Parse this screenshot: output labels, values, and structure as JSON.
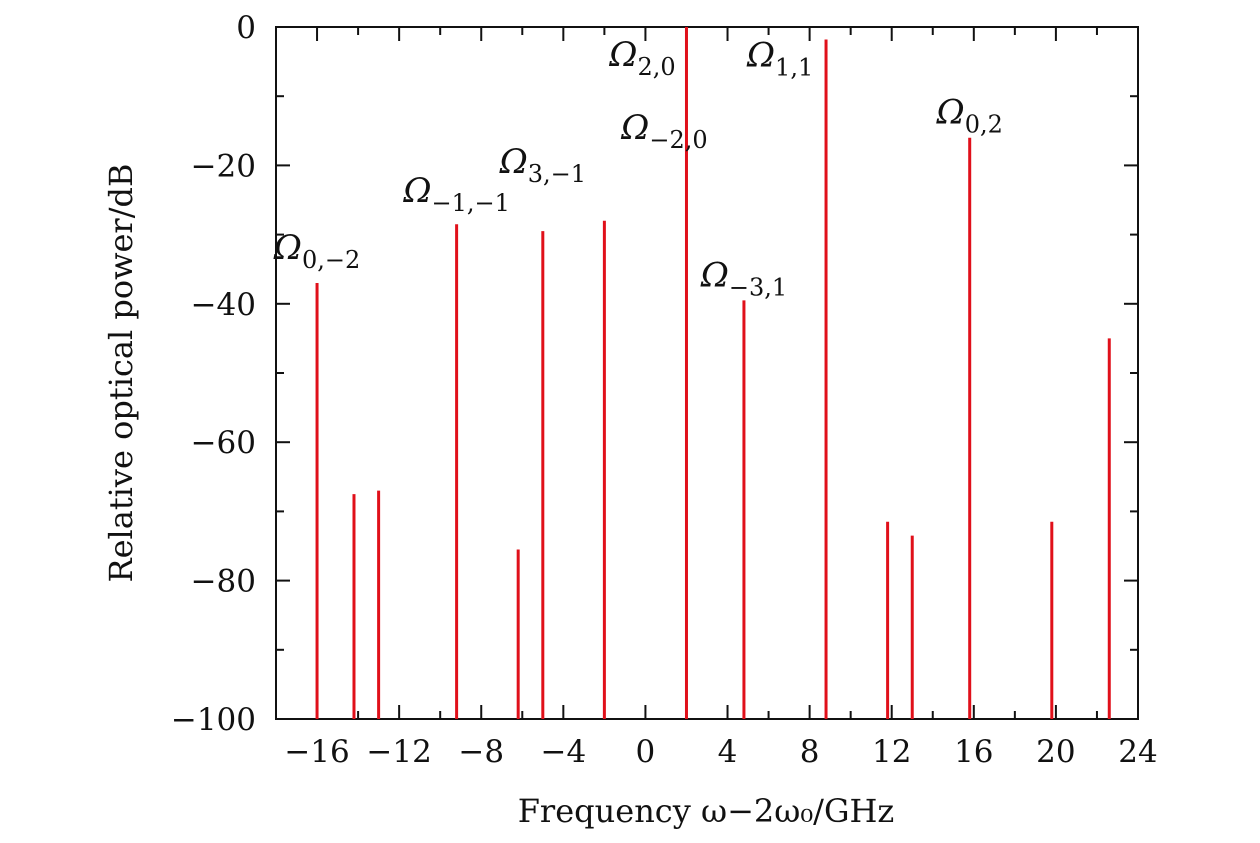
{
  "chart_data": {
    "type": "bar",
    "xlabel": "Frequency ω−2ω₀/GHz",
    "ylabel": "Relative optical power/dB",
    "xlim": [
      -18,
      24
    ],
    "ylim": [
      -100,
      0
    ],
    "xticks": [
      -16,
      -12,
      -8,
      -4,
      0,
      4,
      8,
      12,
      16,
      20,
      24
    ],
    "xtick_labels": [
      "−16",
      "−12",
      "−8",
      "−4",
      "0",
      "4",
      "8",
      "12",
      "16",
      "20",
      "24"
    ],
    "yticks": [
      0,
      -20,
      -40,
      -60,
      -80,
      -100
    ],
    "ytick_labels": [
      "0",
      "−20",
      "−40",
      "−60",
      "−80",
      "−100"
    ],
    "grid": false,
    "line_color": "#e0101a",
    "peaks": [
      {
        "x": -16.0,
        "y": -37.0,
        "label": "Ω",
        "sub": "0,−2"
      },
      {
        "x": -14.2,
        "y": -67.5,
        "label": "",
        "sub": ""
      },
      {
        "x": -13.0,
        "y": -67.0,
        "label": "",
        "sub": ""
      },
      {
        "x": -9.2,
        "y": -28.5,
        "label": "Ω",
        "sub": "−1,−1"
      },
      {
        "x": -6.2,
        "y": -75.5,
        "label": "",
        "sub": ""
      },
      {
        "x": -5.0,
        "y": -29.5,
        "label": "Ω",
        "sub": "3,−1"
      },
      {
        "x": -2.0,
        "y": -28.0,
        "label": "Ω",
        "sub": "−2,0"
      },
      {
        "x": 2.0,
        "y": 0.0,
        "label": "Ω",
        "sub": "2,0"
      },
      {
        "x": 4.8,
        "y": -39.5,
        "label": "Ω",
        "sub": "−3,1"
      },
      {
        "x": 8.8,
        "y": -1.8,
        "label": "Ω",
        "sub": "1,1"
      },
      {
        "x": 11.8,
        "y": -71.5,
        "label": "",
        "sub": ""
      },
      {
        "x": 13.0,
        "y": -73.5,
        "label": "",
        "sub": ""
      },
      {
        "x": 15.8,
        "y": -16.0,
        "label": "Ω",
        "sub": "0,2"
      },
      {
        "x": 19.8,
        "y": -71.5,
        "label": "",
        "sub": ""
      },
      {
        "x": 22.6,
        "y": -45.0,
        "label": "",
        "sub": ""
      }
    ]
  }
}
